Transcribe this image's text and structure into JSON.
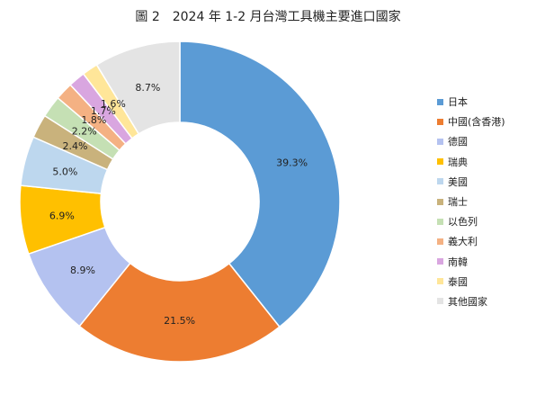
{
  "chart_data": {
    "type": "pie",
    "title": "圖 2　2024 年 1-2 月台灣工具機主要進口國家",
    "legend_position": "right",
    "categories": [
      "日本",
      "中國(含香港)",
      "德國",
      "瑞典",
      "美國",
      "瑞士",
      "以色列",
      "義大利",
      "南韓",
      "泰國",
      "其他國家"
    ],
    "values": [
      39.3,
      21.5,
      8.9,
      6.9,
      5.0,
      2.4,
      2.2,
      1.8,
      1.7,
      1.6,
      8.7
    ],
    "data_labels": [
      "39.3%",
      "21.5%",
      "8.9%",
      "6.9%",
      "5.0%",
      "2.4%",
      "2.2%",
      "1.8%",
      "1.7%",
      "1.6%",
      "8.7%"
    ],
    "colors": [
      "#5b9bd5",
      "#ed7d31",
      "#b4c2f0",
      "#ffc000",
      "#bdd7ee",
      "#c9b27c",
      "#c5e0b4",
      "#f4b183",
      "#d9a6e0",
      "#ffe699",
      "#e4e4e4"
    ]
  }
}
